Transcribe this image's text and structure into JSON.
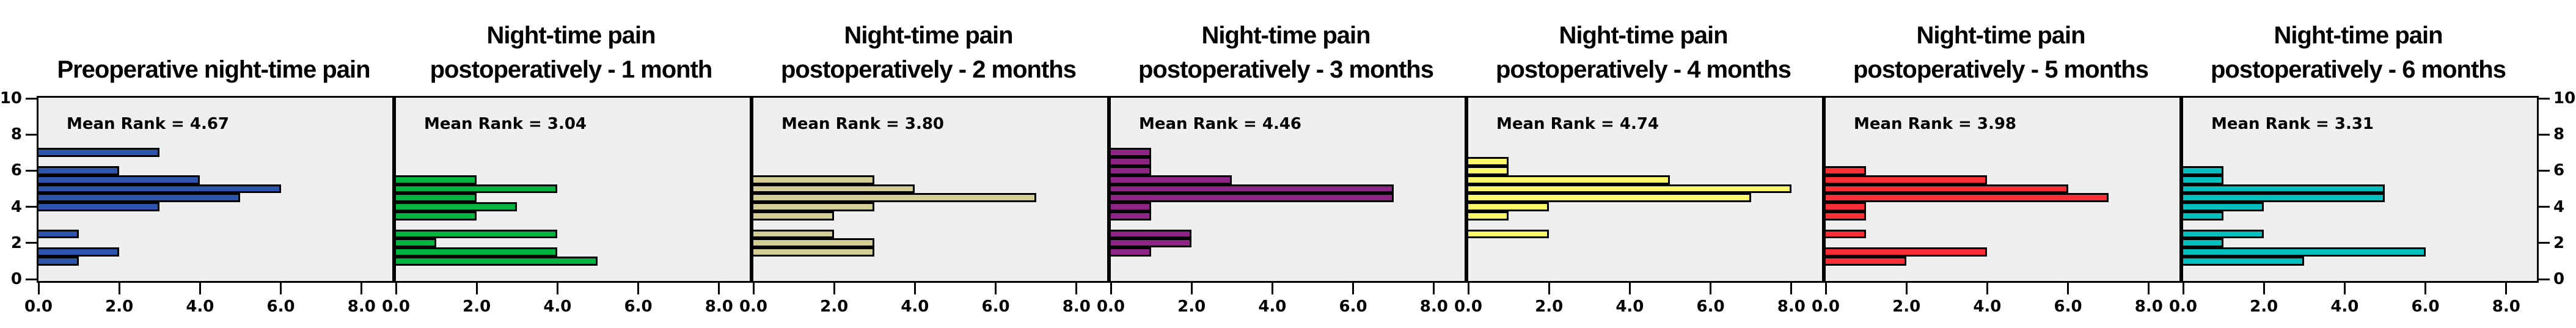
{
  "figure": {
    "kind": "histogram-panel-grid",
    "panel_count": 7,
    "plot_background": "#efefef",
    "frame_color": "#000000",
    "text_color": "#000000"
  },
  "chart_data": [
    {
      "type": "bar",
      "orientation": "horizontal",
      "title": "Preoperative night-time pain",
      "title_lines": [
        "Preoperative night-time pain"
      ],
      "annotation": "Mean Rank = 4.67",
      "mean_rank": 4.67,
      "color": "#2d55ad",
      "y_axis_side": "left",
      "xlabel": "",
      "ylabel": "",
      "xlim": [
        0,
        8.8
      ],
      "ylim": [
        0,
        10
      ],
      "x_ticks": [
        0,
        2,
        4,
        6,
        8
      ],
      "x_tick_labels": [
        "0.0",
        "2.0",
        "4.0",
        "6.0",
        "8.0"
      ],
      "y_ticks": [
        0,
        2,
        4,
        6,
        8,
        10
      ],
      "y_tick_labels": [
        "0",
        "2",
        "4",
        "6",
        "8",
        "10"
      ],
      "bars": [
        {
          "pain_score": 7.0,
          "frequency": 3
        },
        {
          "pain_score": 6.0,
          "frequency": 2
        },
        {
          "pain_score": 5.5,
          "frequency": 4
        },
        {
          "pain_score": 5.0,
          "frequency": 6
        },
        {
          "pain_score": 4.5,
          "frequency": 5
        },
        {
          "pain_score": 4.0,
          "frequency": 3
        },
        {
          "pain_score": 2.5,
          "frequency": 1
        },
        {
          "pain_score": 1.5,
          "frequency": 2
        },
        {
          "pain_score": 1.0,
          "frequency": 1
        }
      ]
    },
    {
      "type": "bar",
      "orientation": "horizontal",
      "title": "Night-time pain postoperatively - 1 month",
      "title_lines": [
        "Night-time pain",
        "postoperatively - 1 month"
      ],
      "annotation": "Mean Rank = 3.04",
      "mean_rank": 3.04,
      "color": "#00b440",
      "y_axis_side": "none",
      "xlabel": "",
      "ylabel": "",
      "xlim": [
        0,
        8.8
      ],
      "ylim": [
        0,
        10
      ],
      "x_ticks": [
        0,
        2,
        4,
        6,
        8
      ],
      "x_tick_labels": [
        "0.0",
        "2.0",
        "4.0",
        "6.0",
        "8.0"
      ],
      "y_ticks": [
        0,
        2,
        4,
        6,
        8,
        10
      ],
      "y_tick_labels": [
        "0",
        "2",
        "4",
        "6",
        "8",
        "10"
      ],
      "bars": [
        {
          "pain_score": 5.5,
          "frequency": 2
        },
        {
          "pain_score": 5.0,
          "frequency": 4
        },
        {
          "pain_score": 4.5,
          "frequency": 2
        },
        {
          "pain_score": 4.0,
          "frequency": 3
        },
        {
          "pain_score": 3.5,
          "frequency": 2
        },
        {
          "pain_score": 2.5,
          "frequency": 4
        },
        {
          "pain_score": 2.0,
          "frequency": 1
        },
        {
          "pain_score": 1.5,
          "frequency": 4
        },
        {
          "pain_score": 1.0,
          "frequency": 5
        }
      ]
    },
    {
      "type": "bar",
      "orientation": "horizontal",
      "title": "Night-time pain postoperatively - 2 months",
      "title_lines": [
        "Night-time pain",
        "postoperatively - 2 months"
      ],
      "annotation": "Mean Rank = 3.80",
      "mean_rank": 3.8,
      "color": "#d4cd94",
      "y_axis_side": "none",
      "xlabel": "",
      "ylabel": "",
      "xlim": [
        0,
        8.8
      ],
      "ylim": [
        0,
        10
      ],
      "x_ticks": [
        0,
        2,
        4,
        6,
        8
      ],
      "x_tick_labels": [
        "0.0",
        "2.0",
        "4.0",
        "6.0",
        "8.0"
      ],
      "y_ticks": [
        0,
        2,
        4,
        6,
        8,
        10
      ],
      "y_tick_labels": [
        "0",
        "2",
        "4",
        "6",
        "8",
        "10"
      ],
      "bars": [
        {
          "pain_score": 5.5,
          "frequency": 3
        },
        {
          "pain_score": 5.0,
          "frequency": 4
        },
        {
          "pain_score": 4.5,
          "frequency": 7
        },
        {
          "pain_score": 4.0,
          "frequency": 3
        },
        {
          "pain_score": 3.5,
          "frequency": 2
        },
        {
          "pain_score": 2.5,
          "frequency": 2
        },
        {
          "pain_score": 2.0,
          "frequency": 3
        },
        {
          "pain_score": 1.5,
          "frequency": 3
        }
      ]
    },
    {
      "type": "bar",
      "orientation": "horizontal",
      "title": "Night-time pain postoperatively - 3 months",
      "title_lines": [
        "Night-time pain",
        "postoperatively - 3 months"
      ],
      "annotation": "Mean Rank = 4.46",
      "mean_rank": 4.46,
      "color": "#8f2487",
      "y_axis_side": "none",
      "xlabel": "",
      "ylabel": "",
      "xlim": [
        0,
        8.8
      ],
      "ylim": [
        0,
        10
      ],
      "x_ticks": [
        0,
        2,
        4,
        6,
        8
      ],
      "x_tick_labels": [
        "0.0",
        "2.0",
        "4.0",
        "6.0",
        "8.0"
      ],
      "y_ticks": [
        0,
        2,
        4,
        6,
        8,
        10
      ],
      "y_tick_labels": [
        "0",
        "2",
        "4",
        "6",
        "8",
        "10"
      ],
      "bars": [
        {
          "pain_score": 7.0,
          "frequency": 1
        },
        {
          "pain_score": 6.5,
          "frequency": 1
        },
        {
          "pain_score": 6.0,
          "frequency": 1
        },
        {
          "pain_score": 5.5,
          "frequency": 3
        },
        {
          "pain_score": 5.0,
          "frequency": 7
        },
        {
          "pain_score": 4.5,
          "frequency": 7
        },
        {
          "pain_score": 4.0,
          "frequency": 1
        },
        {
          "pain_score": 3.5,
          "frequency": 1
        },
        {
          "pain_score": 2.5,
          "frequency": 2
        },
        {
          "pain_score": 2.0,
          "frequency": 2
        },
        {
          "pain_score": 1.5,
          "frequency": 1
        }
      ]
    },
    {
      "type": "bar",
      "orientation": "horizontal",
      "title": "Night-time pain postoperatively - 4 months",
      "title_lines": [
        "Night-time pain",
        "postoperatively - 4 months"
      ],
      "annotation": "Mean Rank = 4.74",
      "mean_rank": 4.74,
      "color": "#fbf86a",
      "y_axis_side": "none",
      "xlabel": "",
      "ylabel": "",
      "xlim": [
        0,
        8.8
      ],
      "ylim": [
        0,
        10
      ],
      "x_ticks": [
        0,
        2,
        4,
        6,
        8
      ],
      "x_tick_labels": [
        "0.0",
        "2.0",
        "4.0",
        "6.0",
        "8.0"
      ],
      "y_ticks": [
        0,
        2,
        4,
        6,
        8,
        10
      ],
      "y_tick_labels": [
        "0",
        "2",
        "4",
        "6",
        "8",
        "10"
      ],
      "bars": [
        {
          "pain_score": 6.5,
          "frequency": 1
        },
        {
          "pain_score": 6.0,
          "frequency": 1
        },
        {
          "pain_score": 5.5,
          "frequency": 5
        },
        {
          "pain_score": 5.0,
          "frequency": 8
        },
        {
          "pain_score": 4.5,
          "frequency": 7
        },
        {
          "pain_score": 4.0,
          "frequency": 2
        },
        {
          "pain_score": 3.5,
          "frequency": 1
        },
        {
          "pain_score": 2.5,
          "frequency": 2
        }
      ]
    },
    {
      "type": "bar",
      "orientation": "horizontal",
      "title": "Night-time pain postoperatively - 5 months",
      "title_lines": [
        "Night-time pain",
        "postoperatively - 5 months"
      ],
      "annotation": "Mean Rank = 3.98",
      "mean_rank": 3.98,
      "color": "#fb2e35",
      "y_axis_side": "none",
      "xlabel": "",
      "ylabel": "",
      "xlim": [
        0,
        8.8
      ],
      "ylim": [
        0,
        10
      ],
      "x_ticks": [
        0,
        2,
        4,
        6,
        8
      ],
      "x_tick_labels": [
        "0.0",
        "2.0",
        "4.0",
        "6.0",
        "8.0"
      ],
      "y_ticks": [
        0,
        2,
        4,
        6,
        8,
        10
      ],
      "y_tick_labels": [
        "0",
        "2",
        "4",
        "6",
        "8",
        "10"
      ],
      "bars": [
        {
          "pain_score": 6.0,
          "frequency": 1
        },
        {
          "pain_score": 5.5,
          "frequency": 4
        },
        {
          "pain_score": 5.0,
          "frequency": 6
        },
        {
          "pain_score": 4.5,
          "frequency": 7
        },
        {
          "pain_score": 4.0,
          "frequency": 1
        },
        {
          "pain_score": 3.5,
          "frequency": 1
        },
        {
          "pain_score": 2.5,
          "frequency": 1
        },
        {
          "pain_score": 1.5,
          "frequency": 4
        },
        {
          "pain_score": 1.0,
          "frequency": 2
        }
      ]
    },
    {
      "type": "bar",
      "orientation": "horizontal",
      "title": "Night-time pain postoperatively - 6 months",
      "title_lines": [
        "Night-time pain",
        "postoperatively - 6 months"
      ],
      "annotation": "Mean Rank = 3.31",
      "mean_rank": 3.31,
      "color": "#00bfbf",
      "y_axis_side": "right",
      "xlabel": "",
      "ylabel": "",
      "xlim": [
        0,
        8.8
      ],
      "ylim": [
        0,
        10
      ],
      "x_ticks": [
        0,
        2,
        4,
        6,
        8
      ],
      "x_tick_labels": [
        "0.0",
        "2.0",
        "4.0",
        "6.0",
        "8.0"
      ],
      "y_ticks": [
        0,
        2,
        4,
        6,
        8,
        10
      ],
      "y_tick_labels": [
        "0",
        "2",
        "4",
        "6",
        "8",
        "10"
      ],
      "bars": [
        {
          "pain_score": 6.0,
          "frequency": 1
        },
        {
          "pain_score": 5.5,
          "frequency": 1
        },
        {
          "pain_score": 5.0,
          "frequency": 5
        },
        {
          "pain_score": 4.5,
          "frequency": 5
        },
        {
          "pain_score": 4.0,
          "frequency": 2
        },
        {
          "pain_score": 3.5,
          "frequency": 1
        },
        {
          "pain_score": 2.5,
          "frequency": 2
        },
        {
          "pain_score": 2.0,
          "frequency": 1
        },
        {
          "pain_score": 1.5,
          "frequency": 6
        },
        {
          "pain_score": 1.0,
          "frequency": 3
        }
      ]
    }
  ]
}
